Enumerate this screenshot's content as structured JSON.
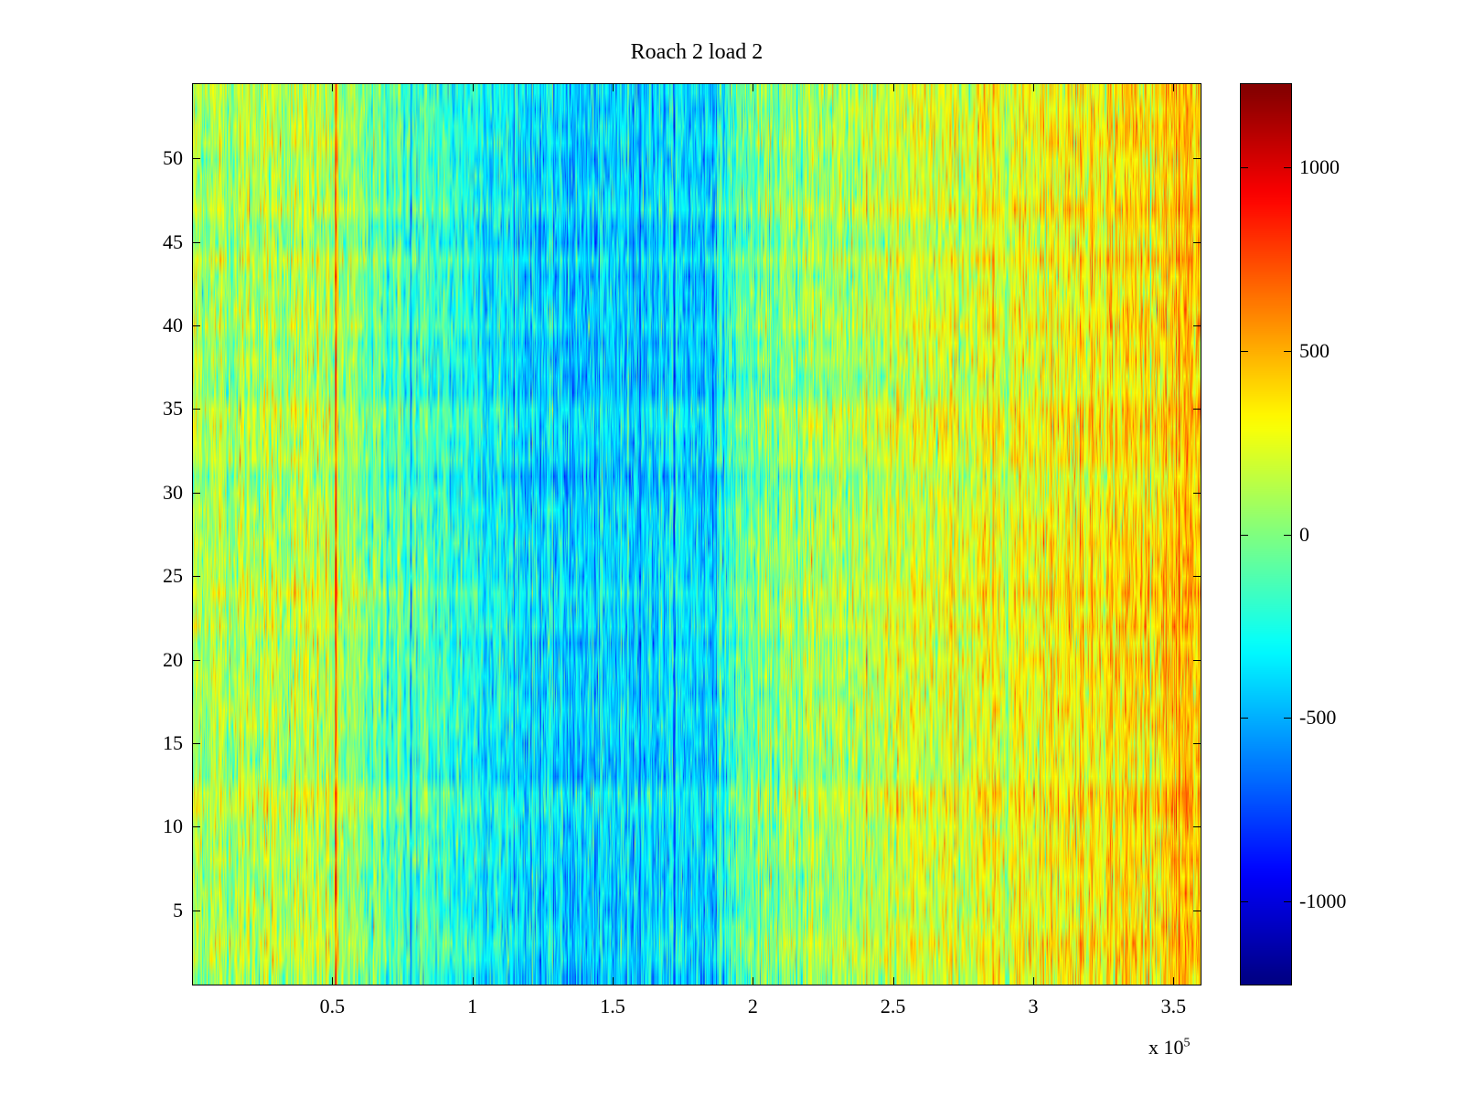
{
  "chart_data": {
    "type": "heatmap",
    "title": "Roach 2 load 2",
    "xlabel": "",
    "ylabel": "",
    "x_exponent_label": "x 10",
    "x_exponent_power": "5",
    "xlim": [
      0,
      3.6
    ],
    "ylim": [
      0.5,
      54.5
    ],
    "x_ticks": [
      0.5,
      1,
      1.5,
      2,
      2.5,
      3,
      3.5
    ],
    "x_tick_labels": [
      "0.5",
      "1",
      "1.5",
      "2",
      "2.5",
      "3",
      "3.5"
    ],
    "y_ticks": [
      5,
      10,
      15,
      20,
      25,
      30,
      35,
      40,
      45,
      50
    ],
    "y_tick_labels": [
      "5",
      "10",
      "15",
      "20",
      "25",
      "30",
      "35",
      "40",
      "45",
      "50"
    ],
    "rows": 54,
    "colorbar": {
      "colormap": "jet",
      "clim": [
        -1230,
        1230
      ],
      "ticks": [
        -1000,
        -500,
        0,
        500,
        1000
      ],
      "tick_labels": [
        "-1000",
        "-500",
        "0",
        "500",
        "1000"
      ]
    },
    "value_profile_by_x": {
      "x": [
        0,
        0.25,
        0.5,
        0.62,
        0.75,
        1.0,
        1.2,
        1.4,
        1.6,
        1.85,
        1.95,
        2.2,
        2.5,
        2.8,
        3.1,
        3.4,
        3.6
      ],
      "mean": [
        100,
        130,
        120,
        -60,
        -120,
        -250,
        -380,
        -450,
        -380,
        -400,
        -100,
        80,
        150,
        220,
        320,
        380,
        420
      ]
    },
    "grid": false
  }
}
